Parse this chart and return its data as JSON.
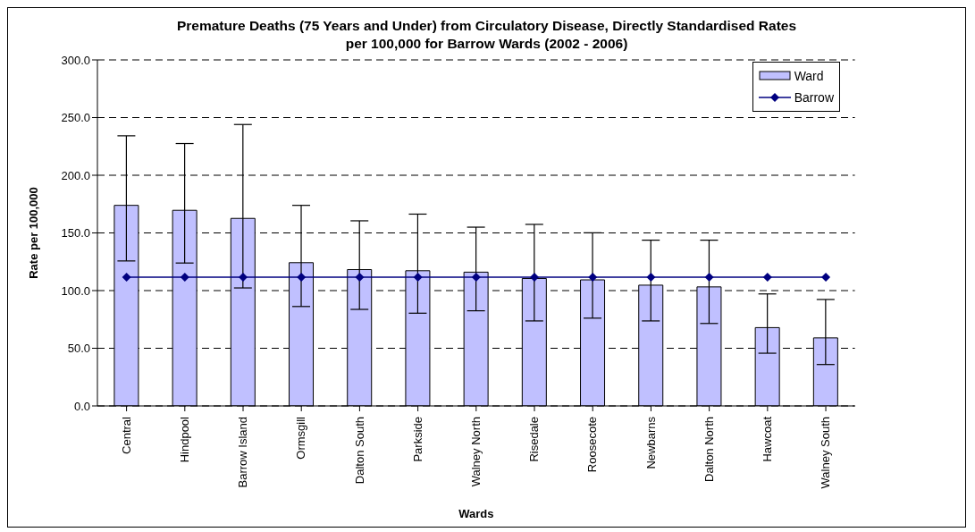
{
  "chart_data": {
    "type": "bar",
    "title": "Premature Deaths (75 Years and Under) from Circulatory Disease, Directly Standardised Rates per 100,000 for Barrow Wards (2002 - 2006)",
    "xlabel": "Wards",
    "ylabel": "Rate per 100,000",
    "categories": [
      "Central",
      "Hindpool",
      "Barrow Island",
      "Ormsgill",
      "Dalton South",
      "Parkside",
      "Walney North",
      "Risedale",
      "Roosecote",
      "Newbarns",
      "Dalton North",
      "Hawcoat",
      "Walney South"
    ],
    "series": [
      {
        "name": "Ward",
        "color": "#c0c0ff",
        "values": [
          173.9,
          169.6,
          162.6,
          124.2,
          118.2,
          117.2,
          116.0,
          110.5,
          109.3,
          104.7,
          103.2,
          67.9,
          59.0
        ],
        "errors": [
          [
            125.7,
            234.2
          ],
          [
            123.9,
            227.5
          ],
          [
            102.3,
            244.0
          ],
          [
            86.2,
            173.9
          ],
          [
            83.7,
            160.5
          ],
          [
            80.4,
            166.3
          ],
          [
            82.5,
            155.0
          ],
          [
            73.7,
            157.4
          ],
          [
            76.1,
            150.1
          ],
          [
            73.7,
            143.7
          ],
          [
            71.5,
            143.7
          ],
          [
            45.7,
            97.1
          ],
          [
            35.9,
            92.3
          ]
        ]
      },
      {
        "name": "Barrow",
        "type": "line",
        "color": "#000080",
        "marker": "diamond",
        "line_style": "solid",
        "values": [
          111.7,
          111.7,
          111.7,
          111.7,
          111.7,
          111.7,
          111.7,
          111.7,
          111.7,
          111.7,
          111.7,
          111.7,
          111.7
        ]
      }
    ],
    "ylim": [
      0,
      300
    ],
    "yticks": [
      {
        "value": 0,
        "label": "0.0"
      },
      {
        "value": 50,
        "label": "50.0"
      },
      {
        "value": 100,
        "label": "100.0"
      },
      {
        "value": 150,
        "label": "150.0"
      },
      {
        "value": 200,
        "label": "200.0"
      },
      {
        "value": 250,
        "label": "250.0"
      },
      {
        "value": 300,
        "label": "300.0"
      }
    ],
    "grid": "y",
    "legend": "top right"
  }
}
